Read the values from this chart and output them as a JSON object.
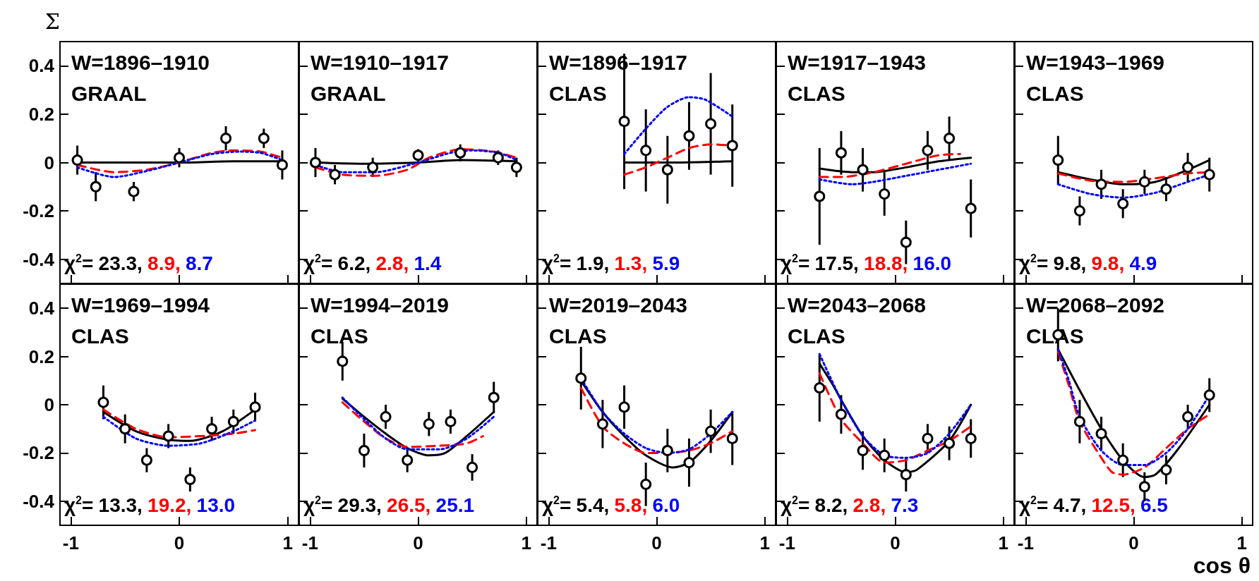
{
  "chart_data": [
    {
      "type": "scatter",
      "xlim": [
        -1.1,
        1.1
      ],
      "ylim": [
        -0.5,
        0.5
      ],
      "xticks": [
        -1,
        0,
        1
      ],
      "yticks": [
        -0.4,
        -0.2,
        0,
        0.2,
        0.4
      ],
      "tick_labels": "y",
      "ylabel": "Σ",
      "annotations": [
        "W=1896–1910",
        "GRAAL",
        "χ$^{2}$=",
        "23.3,",
        "8.9,",
        "8.7"
      ],
      "series": [
        {
          "type": "scatter",
          "color": "#000000",
          "marker": "circle",
          "x": [
            -0.94,
            -0.77,
            -0.42,
            0.0,
            0.43,
            0.78,
            0.95
          ],
          "values": [
            0.01,
            -0.1,
            -0.12,
            0.02,
            0.1,
            0.1,
            -0.01
          ],
          "errors": [
            0.06,
            0.06,
            0.04,
            0.04,
            0.05,
            0.04,
            0.06
          ]
        },
        {
          "type": "line",
          "color": "#000000",
          "line_style": "solid",
          "marker": "none",
          "x": [
            -0.94,
            -0.5,
            0,
            0.5,
            0.95
          ],
          "values": [
            0.0,
            0.0,
            0.0,
            0.005,
            0.005
          ]
        },
        {
          "type": "line",
          "color": "#ff0000",
          "line_style": "dashed",
          "marker": "none",
          "x": [
            -0.94,
            -0.6,
            -0.3,
            0,
            0.3,
            0.5,
            0.75,
            0.95
          ],
          "values": [
            -0.01,
            -0.04,
            -0.03,
            0.0,
            0.04,
            0.05,
            0.045,
            0.02
          ]
        },
        {
          "type": "line",
          "color": "#0000ff",
          "line_style": "dotted",
          "marker": "none",
          "x": [
            -0.94,
            -0.6,
            -0.3,
            0,
            0.3,
            0.55,
            0.75,
            0.95
          ],
          "values": [
            -0.02,
            -0.06,
            -0.035,
            0.0,
            0.035,
            0.045,
            0.04,
            0.01
          ]
        }
      ]
    },
    {
      "type": "scatter",
      "xlim": [
        -1.1,
        1.1
      ],
      "ylim": [
        -0.5,
        0.5
      ],
      "xticks": [
        -1,
        0,
        1
      ],
      "yticks": [
        -0.4,
        -0.2,
        0,
        0.2,
        0.4
      ],
      "tick_labels": false,
      "annotations": [
        "W=1910–1917",
        "GRAAL",
        "χ$^{2}$=",
        "6.2,",
        "2.8,",
        "1.4"
      ],
      "series": [
        {
          "type": "scatter",
          "color": "#000000",
          "marker": "circle",
          "x": [
            -0.95,
            -0.77,
            -0.42,
            0.0,
            0.39,
            0.74,
            0.91
          ],
          "values": [
            0.0,
            -0.05,
            -0.02,
            0.03,
            0.04,
            0.02,
            -0.02
          ],
          "errors": [
            0.06,
            0.04,
            0.04,
            0.025,
            0.035,
            0.03,
            0.04
          ]
        },
        {
          "type": "line",
          "color": "#000000",
          "line_style": "solid",
          "marker": "none",
          "x": [
            -0.95,
            -0.5,
            0,
            0.4,
            0.91
          ],
          "values": [
            0.0,
            -0.005,
            0.0,
            0.01,
            0.005
          ]
        },
        {
          "type": "line",
          "color": "#ff0000",
          "line_style": "dashed",
          "marker": "none",
          "x": [
            -0.95,
            -0.7,
            -0.4,
            -0.1,
            0.1,
            0.4,
            0.7,
            0.91
          ],
          "values": [
            -0.02,
            -0.05,
            -0.055,
            -0.03,
            0.02,
            0.055,
            0.045,
            0.02
          ]
        },
        {
          "type": "line",
          "color": "#0000ff",
          "line_style": "dotted",
          "marker": "none",
          "x": [
            -0.95,
            -0.7,
            -0.4,
            0,
            0.3,
            0.5,
            0.75,
            0.91
          ],
          "values": [
            -0.01,
            -0.04,
            -0.04,
            0.0,
            0.04,
            0.05,
            0.04,
            0.01
          ]
        }
      ]
    },
    {
      "type": "scatter",
      "xlim": [
        -1.1,
        1.1
      ],
      "ylim": [
        -0.5,
        0.5
      ],
      "xticks": [
        -1,
        0,
        1
      ],
      "yticks": [
        -0.4,
        -0.2,
        0,
        0.2,
        0.4
      ],
      "tick_labels": false,
      "annotations": [
        "W=1896–1917",
        "CLAS",
        "χ$^{2}$=",
        "1.9,",
        "1.3,",
        "5.9"
      ],
      "series": [
        {
          "type": "scatter",
          "color": "#000000",
          "marker": "circle",
          "x": [
            -0.3,
            -0.1,
            0.1,
            0.3,
            0.5,
            0.7
          ],
          "values": [
            0.17,
            0.05,
            -0.03,
            0.11,
            0.16,
            0.07
          ],
          "errors": [
            0.28,
            0.17,
            0.14,
            0.14,
            0.21,
            0.17
          ]
        },
        {
          "type": "line",
          "color": "#000000",
          "line_style": "solid",
          "marker": "none",
          "x": [
            -0.3,
            0.2,
            0.7
          ],
          "values": [
            0.0,
            0.0,
            0.005
          ]
        },
        {
          "type": "line",
          "color": "#ff0000",
          "line_style": "dashed",
          "marker": "none",
          "x": [
            -0.3,
            -0.1,
            0.1,
            0.3,
            0.5,
            0.7
          ],
          "values": [
            -0.05,
            -0.02,
            0.02,
            0.06,
            0.075,
            0.07
          ]
        },
        {
          "type": "line",
          "color": "#0000ff",
          "line_style": "dotted",
          "marker": "none",
          "x": [
            -0.3,
            -0.1,
            0.1,
            0.3,
            0.45,
            0.7
          ],
          "values": [
            0.035,
            0.14,
            0.23,
            0.27,
            0.26,
            0.19
          ]
        }
      ]
    },
    {
      "type": "scatter",
      "xlim": [
        -1.1,
        1.1
      ],
      "ylim": [
        -0.5,
        0.5
      ],
      "xticks": [
        -1,
        0,
        1
      ],
      "yticks": [
        -0.4,
        -0.2,
        0,
        0.2,
        0.4
      ],
      "tick_labels": false,
      "annotations": [
        "W=1917–1943",
        "CLAS",
        "χ$^{2}$=",
        "17.5,",
        "18.8,",
        "16.0"
      ],
      "series": [
        {
          "type": "scatter",
          "color": "#000000",
          "marker": "circle",
          "x": [
            -0.7,
            -0.5,
            -0.3,
            -0.1,
            0.1,
            0.3,
            0.5,
            0.7
          ],
          "values": [
            -0.14,
            0.04,
            -0.03,
            -0.13,
            -0.33,
            0.05,
            0.1,
            -0.19
          ],
          "errors": [
            0.2,
            0.09,
            0.09,
            0.09,
            0.09,
            0.08,
            0.09,
            0.12
          ]
        },
        {
          "type": "line",
          "color": "#000000",
          "line_style": "solid",
          "marker": "none",
          "x": [
            -0.7,
            -0.4,
            -0.2,
            0.1,
            0.4,
            0.7
          ],
          "values": [
            -0.025,
            -0.04,
            -0.04,
            -0.02,
            0.005,
            0.02
          ]
        },
        {
          "type": "line",
          "color": "#ff0000",
          "line_style": "dashed",
          "marker": "none",
          "x": [
            -0.7,
            -0.5,
            -0.2,
            0.1,
            0.4,
            0.6
          ],
          "values": [
            -0.06,
            -0.06,
            -0.04,
            -0.005,
            0.03,
            0.035
          ]
        },
        {
          "type": "line",
          "color": "#0000ff",
          "line_style": "dotted",
          "marker": "none",
          "x": [
            -0.7,
            -0.4,
            -0.2,
            0.1,
            0.4,
            0.7
          ],
          "values": [
            -0.07,
            -0.09,
            -0.08,
            -0.055,
            -0.03,
            -0.005
          ]
        }
      ]
    },
    {
      "type": "scatter",
      "xlim": [
        -1.1,
        1.1
      ],
      "ylim": [
        -0.5,
        0.5
      ],
      "xticks": [
        -1,
        0,
        1
      ],
      "yticks": [
        -0.4,
        -0.2,
        0,
        0.2,
        0.4
      ],
      "tick_labels": false,
      "annotations": [
        "W=1943–1969",
        "CLAS",
        "χ$^{2}$=",
        "9.8,",
        "9.8,",
        "4.9"
      ],
      "series": [
        {
          "type": "scatter",
          "color": "#000000",
          "marker": "circle",
          "x": [
            -0.7,
            -0.5,
            -0.3,
            -0.1,
            0.1,
            0.3,
            0.5,
            0.7
          ],
          "values": [
            0.01,
            -0.2,
            -0.09,
            -0.17,
            -0.08,
            -0.11,
            -0.02,
            -0.05
          ],
          "errors": [
            0.1,
            0.06,
            0.06,
            0.06,
            0.05,
            0.05,
            0.06,
            0.07
          ]
        },
        {
          "type": "line",
          "color": "#000000",
          "line_style": "solid",
          "marker": "none",
          "x": [
            -0.7,
            -0.4,
            -0.1,
            0.2,
            0.5,
            0.7
          ],
          "values": [
            -0.04,
            -0.07,
            -0.09,
            -0.08,
            -0.03,
            0.01
          ]
        },
        {
          "type": "line",
          "color": "#ff0000",
          "line_style": "dashed",
          "marker": "none",
          "x": [
            -0.7,
            -0.4,
            -0.1,
            0.2,
            0.5,
            0.7
          ],
          "values": [
            -0.045,
            -0.075,
            -0.08,
            -0.065,
            -0.045,
            -0.04
          ]
        },
        {
          "type": "line",
          "color": "#0000ff",
          "line_style": "dotted",
          "marker": "none",
          "x": [
            -0.7,
            -0.4,
            -0.1,
            0.2,
            0.5,
            0.7
          ],
          "values": [
            -0.09,
            -0.13,
            -0.145,
            -0.125,
            -0.08,
            -0.05
          ]
        }
      ]
    },
    {
      "type": "scatter",
      "xlim": [
        -1.1,
        1.1
      ],
      "ylim": [
        -0.5,
        0.5
      ],
      "xticks": [
        -1,
        0,
        1
      ],
      "yticks": [
        -0.4,
        -0.2,
        0,
        0.2,
        0.4
      ],
      "annotations": [
        "W=1969–1994",
        "CLAS",
        "χ$^{2}$=",
        "13.3,",
        "19.2,",
        "13.0"
      ],
      "series": [
        {
          "type": "scatter",
          "color": "#000000",
          "marker": "circle",
          "x": [
            -0.7,
            -0.5,
            -0.3,
            -0.1,
            0.1,
            0.3,
            0.5,
            0.7
          ],
          "values": [
            0.01,
            -0.1,
            -0.23,
            -0.13,
            -0.31,
            -0.1,
            -0.07,
            -0.01
          ],
          "errors": [
            0.07,
            0.06,
            0.05,
            0.05,
            0.05,
            0.05,
            0.05,
            0.06
          ]
        },
        {
          "type": "line",
          "color": "#000000",
          "line_style": "solid",
          "marker": "none",
          "x": [
            -0.7,
            -0.4,
            -0.1,
            0.1,
            0.4,
            0.7
          ],
          "values": [
            -0.03,
            -0.11,
            -0.145,
            -0.15,
            -0.11,
            -0.02
          ]
        },
        {
          "type": "line",
          "color": "#ff0000",
          "line_style": "dashed",
          "marker": "none",
          "x": [
            -0.7,
            -0.4,
            -0.1,
            0.2,
            0.5,
            0.7
          ],
          "values": [
            -0.02,
            -0.1,
            -0.135,
            -0.13,
            -0.12,
            -0.105
          ]
        },
        {
          "type": "line",
          "color": "#0000ff",
          "line_style": "dotted",
          "marker": "none",
          "x": [
            -0.7,
            -0.4,
            -0.1,
            0.2,
            0.5,
            0.7
          ],
          "values": [
            -0.05,
            -0.14,
            -0.17,
            -0.16,
            -0.11,
            -0.065
          ]
        }
      ]
    },
    {
      "type": "scatter",
      "xlim": [
        -1.1,
        1.1
      ],
      "ylim": [
        -0.5,
        0.5
      ],
      "xticks": [
        -1,
        0,
        1
      ],
      "yticks": [
        -0.4,
        -0.2,
        0,
        0.2,
        0.4
      ],
      "tick_labels": "x",
      "annotations": [
        "W=1994–2019",
        "CLAS",
        "χ$^{2}$=",
        "29.3,",
        "26.5,",
        "25.1"
      ],
      "series": [
        {
          "type": "scatter",
          "color": "#000000",
          "marker": "circle",
          "x": [
            -0.7,
            -0.5,
            -0.3,
            -0.1,
            0.1,
            0.3,
            0.5,
            0.7
          ],
          "values": [
            0.18,
            -0.19,
            -0.05,
            -0.23,
            -0.08,
            -0.07,
            -0.26,
            0.03
          ],
          "errors": [
            0.08,
            0.07,
            0.05,
            0.05,
            0.05,
            0.05,
            0.055,
            0.065
          ]
        },
        {
          "type": "line",
          "color": "#000000",
          "line_style": "solid",
          "marker": "none",
          "x": [
            -0.7,
            -0.5,
            -0.3,
            -0.1,
            0.1,
            0.25,
            0.45,
            0.7
          ],
          "values": [
            0.025,
            -0.05,
            -0.12,
            -0.18,
            -0.21,
            -0.2,
            -0.13,
            -0.03
          ]
        },
        {
          "type": "line",
          "color": "#ff0000",
          "line_style": "dashed",
          "marker": "none",
          "x": [
            -0.7,
            -0.5,
            -0.3,
            -0.1,
            0.2,
            0.45,
            0.6
          ],
          "values": [
            0.01,
            -0.07,
            -0.14,
            -0.175,
            -0.17,
            -0.16,
            -0.13
          ]
        },
        {
          "type": "line",
          "color": "#0000ff",
          "line_style": "dotted",
          "marker": "none",
          "x": [
            -0.7,
            -0.5,
            -0.3,
            -0.1,
            0.2,
            0.45,
            0.7
          ],
          "values": [
            0.03,
            -0.06,
            -0.14,
            -0.185,
            -0.185,
            -0.14,
            -0.05
          ]
        }
      ]
    },
    {
      "type": "scatter",
      "xlim": [
        -1.1,
        1.1
      ],
      "ylim": [
        -0.5,
        0.5
      ],
      "xticks": [
        -1,
        0,
        1
      ],
      "yticks": [
        -0.4,
        -0.2,
        0,
        0.2,
        0.4
      ],
      "tick_labels": "x",
      "annotations": [
        "W=2019–2043",
        "CLAS",
        "χ$^{2}$=",
        "5.4,",
        "5.8,",
        "6.0"
      ],
      "series": [
        {
          "type": "scatter",
          "color": "#000000",
          "marker": "circle",
          "x": [
            -0.7,
            -0.5,
            -0.3,
            -0.1,
            0.1,
            0.3,
            0.5,
            0.7
          ],
          "values": [
            0.11,
            -0.08,
            -0.01,
            -0.33,
            -0.19,
            -0.24,
            -0.11,
            -0.14
          ],
          "errors": [
            0.13,
            0.1,
            0.09,
            0.09,
            0.09,
            0.1,
            0.09,
            0.11
          ]
        },
        {
          "type": "line",
          "color": "#000000",
          "line_style": "solid",
          "marker": "none",
          "x": [
            -0.7,
            -0.5,
            -0.3,
            -0.1,
            0.15,
            0.3,
            0.5,
            0.7
          ],
          "values": [
            0.1,
            -0.03,
            -0.13,
            -0.21,
            -0.26,
            -0.24,
            -0.15,
            -0.03
          ]
        },
        {
          "type": "line",
          "color": "#ff0000",
          "line_style": "dashed",
          "marker": "none",
          "x": [
            -0.7,
            -0.5,
            -0.3,
            -0.1,
            0.1,
            0.3,
            0.5,
            0.7
          ],
          "values": [
            0.07,
            -0.09,
            -0.16,
            -0.2,
            -0.2,
            -0.19,
            -0.16,
            -0.11
          ]
        },
        {
          "type": "line",
          "color": "#0000ff",
          "line_style": "dotted",
          "marker": "none",
          "x": [
            -0.7,
            -0.5,
            -0.3,
            -0.1,
            0.1,
            0.3,
            0.5,
            0.7
          ],
          "values": [
            0.11,
            -0.03,
            -0.12,
            -0.18,
            -0.2,
            -0.185,
            -0.12,
            -0.03
          ]
        }
      ]
    },
    {
      "type": "scatter",
      "xlim": [
        -1.1,
        1.1
      ],
      "ylim": [
        -0.5,
        0.5
      ],
      "xticks": [
        -1,
        0,
        1
      ],
      "yticks": [
        -0.4,
        -0.2,
        0,
        0.2,
        0.4
      ],
      "tick_labels": "x",
      "annotations": [
        "W=2043–2068",
        "CLAS",
        "χ$^{2}$=",
        "8.2,",
        "2.8,",
        "7.3"
      ],
      "series": [
        {
          "type": "scatter",
          "color": "#000000",
          "marker": "circle",
          "x": [
            -0.7,
            -0.5,
            -0.3,
            -0.1,
            0.1,
            0.3,
            0.5,
            0.7
          ],
          "values": [
            0.07,
            -0.04,
            -0.19,
            -0.21,
            -0.29,
            -0.14,
            -0.16,
            -0.14
          ],
          "errors": [
            0.14,
            0.08,
            0.08,
            0.07,
            0.07,
            0.06,
            0.07,
            0.08
          ]
        },
        {
          "type": "line",
          "color": "#000000",
          "line_style": "solid",
          "marker": "none",
          "x": [
            -0.7,
            -0.58,
            -0.5,
            -0.3,
            -0.1,
            0.1,
            0.2,
            0.5,
            0.7
          ],
          "values": [
            0.17,
            0.085,
            0.02,
            -0.13,
            -0.23,
            -0.28,
            -0.27,
            -0.15,
            0.0
          ]
        },
        {
          "type": "line",
          "color": "#ff0000",
          "line_style": "dashed",
          "marker": "none",
          "x": [
            -0.7,
            -0.5,
            -0.3,
            -0.1,
            0.1,
            0.3,
            0.5,
            0.7
          ],
          "values": [
            0.13,
            -0.06,
            -0.16,
            -0.24,
            -0.23,
            -0.19,
            -0.15,
            -0.09
          ]
        },
        {
          "type": "line",
          "color": "#0000ff",
          "line_style": "dotted",
          "marker": "none",
          "x": [
            -0.7,
            -0.5,
            -0.3,
            -0.1,
            0.1,
            0.3,
            0.5,
            0.7
          ],
          "values": [
            0.21,
            0.02,
            -0.13,
            -0.21,
            -0.22,
            -0.2,
            -0.12,
            0.0
          ]
        }
      ]
    },
    {
      "type": "scatter",
      "xlim": [
        -1.1,
        1.1
      ],
      "ylim": [
        -0.5,
        0.5
      ],
      "xticks": [
        -1,
        0,
        1
      ],
      "yticks": [
        -0.4,
        -0.2,
        0,
        0.2,
        0.4
      ],
      "tick_labels": "x",
      "xlabel": "cos θ",
      "annotations": [
        "W=2068–2092",
        "CLAS",
        "χ$^{2}$=",
        "4.7,",
        "12.5,",
        "6.5"
      ],
      "series": [
        {
          "type": "scatter",
          "color": "#000000",
          "marker": "circle",
          "x": [
            -0.7,
            -0.5,
            -0.3,
            -0.1,
            0.1,
            0.3,
            0.5,
            0.7
          ],
          "values": [
            0.29,
            -0.07,
            -0.12,
            -0.23,
            -0.34,
            -0.27,
            -0.05,
            0.04
          ],
          "errors": [
            0.11,
            0.09,
            0.07,
            0.07,
            0.06,
            0.06,
            0.05,
            0.07
          ]
        },
        {
          "type": "line",
          "color": "#000000",
          "line_style": "solid",
          "marker": "none",
          "x": [
            -0.7,
            -0.5,
            -0.3,
            -0.1,
            0.1,
            0.2,
            0.4,
            0.7
          ],
          "values": [
            0.23,
            0.06,
            -0.1,
            -0.23,
            -0.3,
            -0.29,
            -0.19,
            0.0
          ]
        },
        {
          "type": "line",
          "color": "#ff0000",
          "line_style": "dashed",
          "marker": "none",
          "x": [
            -0.7,
            -0.6,
            -0.5,
            -0.3,
            -0.2,
            -0.1,
            0.1,
            0.3,
            0.5,
            0.7
          ],
          "values": [
            0.22,
            0.08,
            -0.07,
            -0.22,
            -0.28,
            -0.29,
            -0.26,
            -0.18,
            -0.1,
            -0.04
          ]
        },
        {
          "type": "line",
          "color": "#0000ff",
          "line_style": "dotted",
          "marker": "none",
          "x": [
            -0.7,
            -0.6,
            -0.5,
            -0.3,
            -0.1,
            0.1,
            0.3,
            0.5,
            0.7
          ],
          "values": [
            0.23,
            0.1,
            -0.05,
            -0.19,
            -0.25,
            -0.25,
            -0.2,
            -0.1,
            0.04
          ]
        }
      ]
    }
  ]
}
